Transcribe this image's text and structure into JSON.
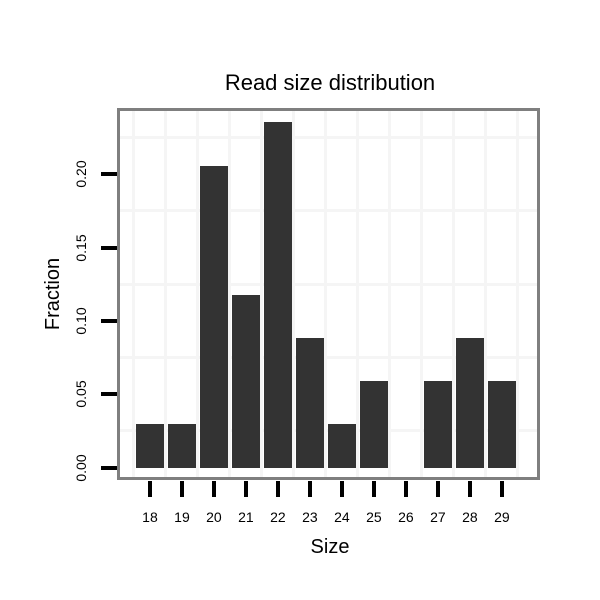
{
  "chart_data": {
    "type": "bar",
    "title": "Read size distribution",
    "xlabel": "Size",
    "ylabel": "Fraction",
    "categories": [
      18,
      19,
      20,
      21,
      22,
      23,
      24,
      25,
      26,
      27,
      28,
      29
    ],
    "values": [
      0.0294,
      0.0294,
      0.2059,
      0.1176,
      0.2353,
      0.0882,
      0.0294,
      0.0588,
      0.0,
      0.0588,
      0.0882,
      0.0588
    ],
    "xtick_labels": [
      "18",
      "19",
      "20",
      "21",
      "22",
      "23",
      "24",
      "25",
      "26",
      "27",
      "28",
      "29"
    ],
    "yticks": [
      0.0,
      0.05,
      0.1,
      0.15,
      0.2
    ],
    "ytick_labels": [
      "0.00",
      "0.05",
      "0.10",
      "0.15",
      "0.20"
    ],
    "xlim": [
      16.97,
      30.19
    ],
    "ylim": [
      -0.0085,
      0.2451
    ],
    "bar_width_units": 0.9,
    "legend": "none",
    "grid": {
      "minor_x": [
        17.5,
        18.5,
        19.5,
        20.5,
        21.5,
        22.5,
        23.5,
        24.5,
        25.5,
        26.5,
        27.5,
        28.5,
        29.5
      ],
      "minor_y": [
        0.025,
        0.075,
        0.125,
        0.175,
        0.225
      ]
    },
    "colors": {
      "bar": "#333333",
      "gridline": "#f5f5f5",
      "panel_border": "#7f7f7f",
      "panel_background": "#ffffff",
      "tick": "#000000",
      "text": "#000000",
      "page_background": "#ffffff"
    }
  }
}
